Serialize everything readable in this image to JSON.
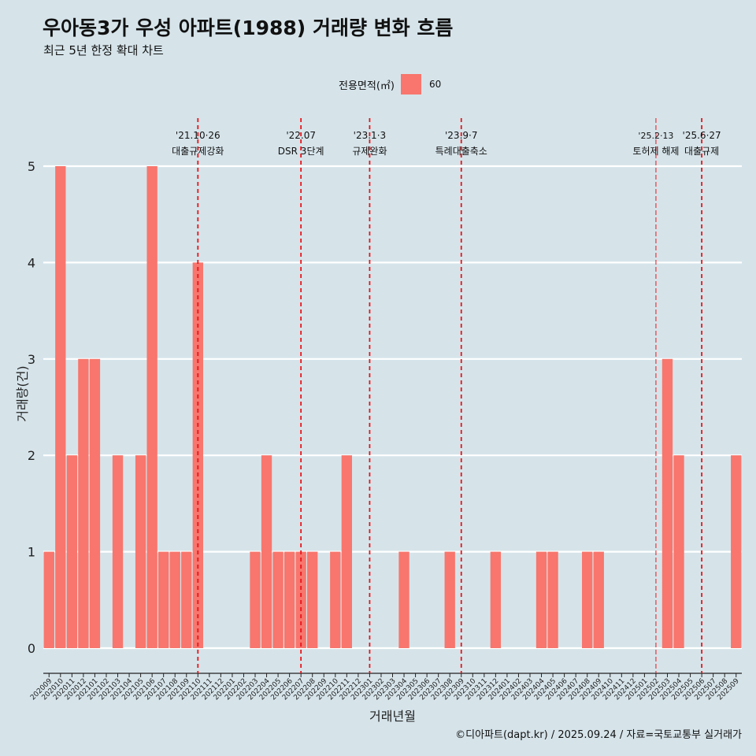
{
  "title": "우아동3가 우성 아파트(1988) 거래량 변화 흐름",
  "subtitle": "최근 5년 한정 확대 차트",
  "legend": {
    "title": "전용면적(㎡)",
    "items": [
      {
        "label": "60",
        "color": "#f8766d"
      }
    ]
  },
  "credit": "©디아파트(dapt.kr) / 2025.09.24 / 자료=국토교통부 실거래가",
  "chart_data": {
    "type": "bar",
    "xlabel": "거래년월",
    "ylabel": "거래량(건)",
    "ylim": [
      0,
      5
    ],
    "yticks": [
      0,
      1,
      2,
      3,
      4,
      5
    ],
    "grid": true,
    "bar_color": "#f8766d",
    "categories": [
      "202009",
      "202010",
      "202011",
      "202012",
      "202101",
      "202102",
      "202103",
      "202104",
      "202105",
      "202106",
      "202107",
      "202108",
      "202109",
      "202110",
      "202111",
      "202112",
      "202201",
      "202202",
      "202203",
      "202204",
      "202205",
      "202206",
      "202207",
      "202208",
      "202209",
      "202210",
      "202211",
      "202212",
      "202301",
      "202302",
      "202303",
      "202304",
      "202305",
      "202306",
      "202307",
      "202308",
      "202309",
      "202310",
      "202311",
      "202312",
      "202401",
      "202402",
      "202403",
      "202404",
      "202405",
      "202406",
      "202407",
      "202408",
      "202409",
      "202410",
      "202411",
      "202412",
      "202501",
      "202502",
      "202503",
      "202504",
      "202505",
      "202506",
      "202507",
      "202508",
      "202509"
    ],
    "values": [
      1,
      5,
      2,
      3,
      3,
      0,
      2,
      0,
      2,
      5,
      1,
      1,
      1,
      4,
      0,
      0,
      0,
      0,
      1,
      2,
      1,
      1,
      1,
      1,
      0,
      1,
      2,
      0,
      0,
      0,
      0,
      1,
      0,
      0,
      0,
      1,
      0,
      0,
      0,
      1,
      0,
      0,
      0,
      1,
      1,
      0,
      0,
      1,
      1,
      0,
      0,
      0,
      0,
      0,
      3,
      2,
      0,
      0,
      0,
      0,
      2
    ],
    "annotations": [
      {
        "date": "'21.10·26",
        "label": "대출규제강화",
        "at": 13.0
      },
      {
        "date": "'22.07",
        "label": "DSR 3단계",
        "at": 22.0
      },
      {
        "date": "'23.1·3",
        "label": "규제완화",
        "at": 28.0
      },
      {
        "date": "'23.9·7",
        "label": "특례대출축소",
        "at": 36.0
      },
      {
        "date": "'25.2·13",
        "label": "토허제 해제",
        "at": 53.0,
        "style": "thin"
      },
      {
        "date": "'25.6·27",
        "label": "대출규제",
        "at": 57.0
      }
    ]
  }
}
